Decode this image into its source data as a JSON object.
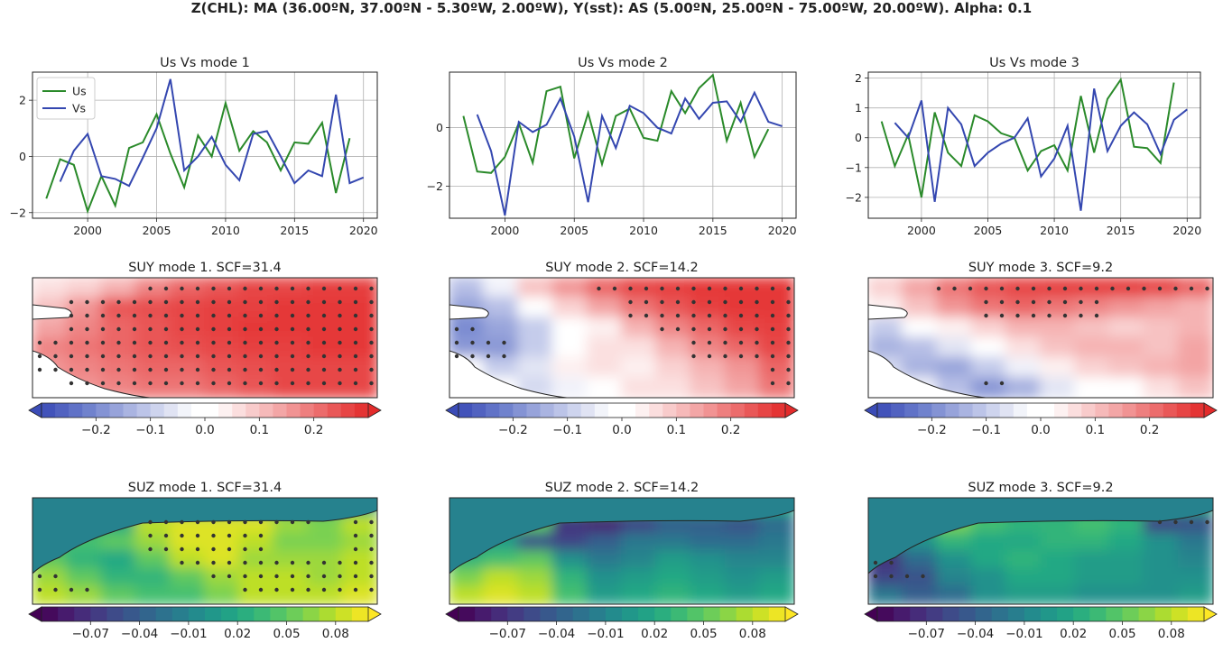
{
  "figure_title": "Z(CHL): MA (36.00ºN, 37.00ºN - 5.30ºW, 2.00ºW), Y(sst): AS (5.00ºN, 25.00ºN - 75.00ºW, 20.00ºW). Alpha: 0.1",
  "colors": {
    "us": "#2a8a2a",
    "vs": "#3447b0",
    "land": "#ffffff",
    "sig_dot": "#333333"
  },
  "chart_data": [
    {
      "type": "line",
      "title": "Us Vs mode 1",
      "legend": [
        "Us",
        "Vs"
      ],
      "legend_position": "top-left",
      "xlim": [
        1996,
        2021
      ],
      "ylim": [
        -2.2,
        3.0
      ],
      "xticks": [
        2000,
        2005,
        2010,
        2015,
        2020
      ],
      "yticks": [
        -2,
        0,
        2
      ],
      "grid": true,
      "series": [
        {
          "name": "Us",
          "x": [
            1997,
            1998,
            1999,
            2000,
            2001,
            2002,
            2003,
            2004,
            2005,
            2006,
            2007,
            2008,
            2009,
            2010,
            2011,
            2012,
            2013,
            2014,
            2015,
            2016,
            2017,
            2018,
            2019
          ],
          "values": [
            -1.5,
            -0.1,
            -0.3,
            -1.95,
            -0.7,
            -1.75,
            0.3,
            0.5,
            1.5,
            0.1,
            -1.1,
            0.75,
            0.0,
            1.9,
            0.2,
            0.9,
            0.5,
            -0.5,
            0.5,
            0.45,
            1.2,
            -1.3,
            0.65
          ]
        },
        {
          "name": "Vs",
          "x": [
            1998,
            1999,
            2000,
            2001,
            2002,
            2003,
            2004,
            2005,
            2006,
            2007,
            2008,
            2009,
            2010,
            2011,
            2012,
            2013,
            2014,
            2015,
            2016,
            2017,
            2018,
            2019,
            2020
          ],
          "values": [
            -0.9,
            0.2,
            0.8,
            -0.7,
            -0.8,
            -1.05,
            -0.05,
            1.0,
            2.75,
            -0.5,
            0.0,
            0.7,
            -0.3,
            -0.85,
            0.8,
            0.9,
            0.0,
            -0.95,
            -0.5,
            -0.7,
            2.2,
            -0.95,
            -0.75
          ]
        }
      ]
    },
    {
      "type": "line",
      "title": "Us Vs mode 2",
      "xlim": [
        1996,
        2021
      ],
      "ylim": [
        -3.1,
        1.9
      ],
      "xticks": [
        2000,
        2005,
        2010,
        2015,
        2020
      ],
      "yticks": [
        -2,
        0
      ],
      "grid": true,
      "series": [
        {
          "name": "Us",
          "x": [
            1997,
            1998,
            1999,
            2000,
            2001,
            2002,
            2003,
            2004,
            2005,
            2006,
            2007,
            2008,
            2009,
            2010,
            2011,
            2012,
            2013,
            2014,
            2015,
            2016,
            2017,
            2018,
            2019
          ],
          "values": [
            0.4,
            -1.5,
            -1.55,
            -1.0,
            0.15,
            -1.2,
            1.25,
            1.4,
            -1.05,
            0.5,
            -1.25,
            0.4,
            0.65,
            -0.35,
            -0.45,
            1.25,
            0.5,
            1.35,
            1.8,
            -0.45,
            0.85,
            -1.0,
            -0.05
          ]
        },
        {
          "name": "Vs",
          "x": [
            1998,
            1999,
            2000,
            2001,
            2002,
            2003,
            2004,
            2005,
            2006,
            2007,
            2008,
            2009,
            2010,
            2011,
            2012,
            2013,
            2014,
            2015,
            2016,
            2017,
            2018,
            2019,
            2020
          ],
          "values": [
            0.45,
            -0.8,
            -3.0,
            0.2,
            -0.15,
            0.1,
            1.0,
            -0.3,
            -2.55,
            0.4,
            -0.7,
            0.75,
            0.5,
            0.0,
            -0.2,
            1.0,
            0.3,
            0.85,
            0.9,
            0.2,
            1.2,
            0.2,
            0.05
          ]
        }
      ]
    },
    {
      "type": "line",
      "title": "Us Vs mode 3",
      "xlim": [
        1996,
        2021
      ],
      "ylim": [
        -2.7,
        2.2
      ],
      "xticks": [
        2000,
        2005,
        2010,
        2015,
        2020
      ],
      "yticks": [
        -2,
        -1,
        0,
        1,
        2
      ],
      "grid": true,
      "series": [
        {
          "name": "Us",
          "x": [
            1997,
            1998,
            1999,
            2000,
            2001,
            2002,
            2003,
            2004,
            2005,
            2006,
            2007,
            2008,
            2009,
            2010,
            2011,
            2012,
            2013,
            2014,
            2015,
            2016,
            2017,
            2018,
            2019
          ],
          "values": [
            0.55,
            -0.95,
            0.1,
            -2.0,
            0.85,
            -0.5,
            -0.95,
            0.75,
            0.55,
            0.15,
            0.0,
            -1.1,
            -0.45,
            -0.25,
            -1.1,
            1.4,
            -0.5,
            1.3,
            1.95,
            -0.3,
            -0.35,
            -0.85,
            1.85
          ]
        },
        {
          "name": "Vs",
          "x": [
            1998,
            1999,
            2000,
            2001,
            2002,
            2003,
            2004,
            2005,
            2006,
            2007,
            2008,
            2009,
            2010,
            2011,
            2012,
            2013,
            2014,
            2015,
            2016,
            2017,
            2018,
            2019,
            2020
          ],
          "values": [
            0.5,
            0.0,
            1.25,
            -2.15,
            1.0,
            0.45,
            -0.95,
            -0.5,
            -0.2,
            0.0,
            0.65,
            -1.3,
            -0.7,
            0.4,
            -2.45,
            1.65,
            -0.45,
            0.4,
            0.85,
            0.45,
            -0.55,
            0.6,
            0.95
          ]
        }
      ]
    },
    {
      "type": "heatmap",
      "title": "SUY mode 1. SCF=31.4",
      "colormap": "bwr",
      "colorbar_ticks": [
        "−0.2",
        "−0.1",
        "0.0",
        "0.1",
        "0.2"
      ],
      "colorbar_range": [
        -0.3,
        0.3
      ],
      "stippling": "significant points",
      "grid_values": [
        [
          0.06,
          0.08,
          0.12,
          0.18,
          0.22,
          0.24,
          0.26,
          0.26,
          0.27,
          0.27
        ],
        [
          0.1,
          0.16,
          0.24,
          0.25,
          0.26,
          0.27,
          0.27,
          0.28,
          0.28,
          0.28
        ],
        [
          0.14,
          0.18,
          0.22,
          0.24,
          0.26,
          0.27,
          0.28,
          0.28,
          0.28,
          0.28
        ],
        [
          0.18,
          0.2,
          0.22,
          0.24,
          0.25,
          0.26,
          0.27,
          0.27,
          0.28,
          0.28
        ],
        [
          0.16,
          0.18,
          0.2,
          0.22,
          0.22,
          0.24,
          0.25,
          0.26,
          0.26,
          0.26
        ],
        [
          0.14,
          0.16,
          0.18,
          0.2,
          0.2,
          0.22,
          0.24,
          0.26,
          0.26,
          0.26
        ]
      ]
    },
    {
      "type": "heatmap",
      "title": "SUY mode 2. SCF=14.2",
      "colormap": "bwr",
      "colorbar_ticks": [
        "−0.2",
        "−0.1",
        "0.0",
        "0.1",
        "0.2"
      ],
      "colorbar_range": [
        -0.3,
        0.3
      ],
      "stippling": "significant points",
      "grid_values": [
        [
          -0.12,
          -0.04,
          0.1,
          0.16,
          0.22,
          0.26,
          0.27,
          0.28,
          0.28,
          0.28
        ],
        [
          -0.16,
          -0.12,
          -0.02,
          0.08,
          0.14,
          0.2,
          0.24,
          0.27,
          0.28,
          0.28
        ],
        [
          -0.2,
          -0.16,
          -0.1,
          -0.02,
          0.04,
          0.12,
          0.18,
          0.22,
          0.26,
          0.27
        ],
        [
          -0.18,
          -0.18,
          -0.1,
          0.02,
          0.06,
          0.06,
          0.12,
          0.18,
          0.22,
          0.26
        ],
        [
          -0.02,
          -0.1,
          -0.06,
          0.04,
          0.06,
          0.04,
          0.08,
          0.12,
          0.16,
          0.22
        ],
        [
          0.02,
          0.0,
          -0.08,
          -0.04,
          0.02,
          0.06,
          0.06,
          0.1,
          0.14,
          0.2
        ]
      ]
    },
    {
      "type": "heatmap",
      "title": "SUY mode 3. SCF=9.2",
      "colormap": "bwr",
      "colorbar_ticks": [
        "−0.2",
        "−0.1",
        "0.0",
        "0.1",
        "0.2"
      ],
      "colorbar_range": [
        -0.3,
        0.3
      ],
      "stippling": "significant points",
      "grid_values": [
        [
          0.08,
          0.14,
          0.2,
          0.24,
          0.26,
          0.27,
          0.27,
          0.27,
          0.26,
          0.22
        ],
        [
          0.04,
          0.1,
          0.16,
          0.2,
          0.22,
          0.2,
          0.18,
          0.16,
          0.14,
          0.12
        ],
        [
          -0.1,
          -0.02,
          0.04,
          0.08,
          0.12,
          0.12,
          0.1,
          0.08,
          0.1,
          0.12
        ],
        [
          -0.14,
          -0.12,
          -0.06,
          0.02,
          0.06,
          0.1,
          0.12,
          0.12,
          0.1,
          0.14
        ],
        [
          -0.08,
          -0.14,
          -0.16,
          -0.1,
          -0.04,
          0.04,
          0.08,
          0.1,
          0.12,
          0.14
        ],
        [
          0.02,
          -0.04,
          -0.12,
          -0.18,
          -0.14,
          -0.06,
          -0.02,
          0.02,
          0.06,
          0.1
        ]
      ]
    },
    {
      "type": "heatmap",
      "title": "SUZ mode 1. SCF=31.4",
      "colormap": "viridis",
      "colorbar_ticks": [
        "−0.07",
        "−0.04",
        "−0.01",
        "0.02",
        "0.05",
        "0.08"
      ],
      "colorbar_range": [
        -0.1,
        0.1
      ],
      "stippling": "significant points",
      "grid_values": [
        [
          0.02,
          0.02,
          0.02,
          0.02,
          0.02,
          0.02,
          0.02,
          0.02,
          0.02,
          0.02
        ],
        [
          0.02,
          0.02,
          0.02,
          0.08,
          0.09,
          0.09,
          0.09,
          0.07,
          0.06,
          0.08
        ],
        [
          0.02,
          0.04,
          0.05,
          0.07,
          0.09,
          0.09,
          0.08,
          0.06,
          0.06,
          0.07
        ],
        [
          0.05,
          0.03,
          0.02,
          0.05,
          0.08,
          0.09,
          0.07,
          0.07,
          0.07,
          0.08
        ],
        [
          0.07,
          0.05,
          0.03,
          0.03,
          0.05,
          0.07,
          0.08,
          0.08,
          0.07,
          0.08
        ],
        [
          0.08,
          0.07,
          0.05,
          0.04,
          0.04,
          0.06,
          0.08,
          0.08,
          0.08,
          0.09
        ]
      ]
    },
    {
      "type": "heatmap",
      "title": "SUZ mode 2. SCF=14.2",
      "colormap": "viridis",
      "colorbar_ticks": [
        "−0.07",
        "−0.04",
        "−0.01",
        "0.02",
        "0.05",
        "0.08"
      ],
      "colorbar_range": [
        -0.1,
        0.1
      ],
      "stippling": "none",
      "grid_values": [
        [
          0.02,
          0.02,
          0.02,
          0.02,
          0.02,
          0.02,
          0.02,
          0.02,
          0.02,
          0.02
        ],
        [
          0.02,
          0.02,
          0.05,
          -0.07,
          -0.08,
          -0.06,
          -0.04,
          -0.04,
          -0.05,
          -0.03
        ],
        [
          0.0,
          0.01,
          -0.05,
          -0.06,
          -0.04,
          -0.02,
          -0.02,
          -0.03,
          -0.03,
          -0.02
        ],
        [
          0.03,
          0.04,
          0.05,
          0.0,
          -0.02,
          -0.01,
          0.01,
          0.0,
          -0.01,
          -0.01
        ],
        [
          0.06,
          0.08,
          0.07,
          0.03,
          0.0,
          0.01,
          0.02,
          0.01,
          0.0,
          0.01
        ],
        [
          0.08,
          0.09,
          0.08,
          0.04,
          0.01,
          0.02,
          0.03,
          0.02,
          0.01,
          0.02
        ]
      ]
    },
    {
      "type": "heatmap",
      "title": "SUZ mode 3. SCF=9.2",
      "colormap": "viridis",
      "colorbar_ticks": [
        "−0.07",
        "−0.04",
        "−0.01",
        "0.02",
        "0.05",
        "0.08"
      ],
      "colorbar_range": [
        -0.1,
        0.1
      ],
      "stippling": "significant points",
      "grid_values": [
        [
          0.02,
          0.02,
          0.02,
          0.02,
          0.02,
          0.02,
          0.02,
          0.02,
          0.02,
          0.02
        ],
        [
          0.02,
          0.02,
          0.06,
          0.04,
          0.03,
          0.03,
          0.04,
          0.03,
          -0.06,
          -0.05
        ],
        [
          -0.03,
          0.0,
          0.03,
          0.02,
          0.02,
          0.03,
          0.03,
          0.02,
          0.0,
          -0.02
        ],
        [
          -0.07,
          -0.03,
          0.0,
          0.02,
          0.03,
          0.02,
          0.01,
          0.01,
          0.0,
          -0.01
        ],
        [
          -0.06,
          -0.05,
          -0.01,
          0.0,
          0.02,
          0.02,
          0.01,
          0.01,
          0.0,
          0.0
        ],
        [
          -0.02,
          -0.04,
          -0.03,
          0.0,
          0.01,
          0.01,
          0.0,
          0.0,
          0.0,
          0.01
        ]
      ]
    }
  ]
}
